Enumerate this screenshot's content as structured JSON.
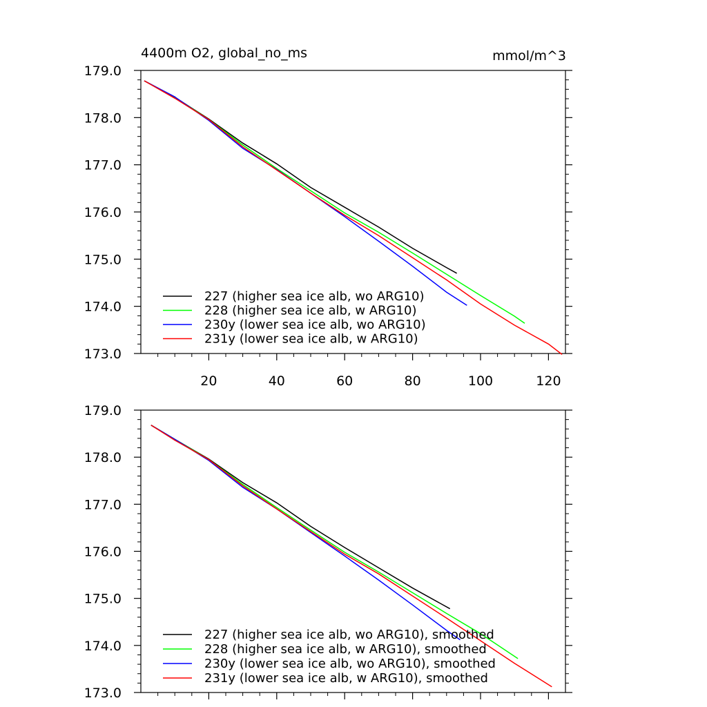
{
  "figure": {
    "title_left": "4400m O2, global_no_ms",
    "title_right": "mmol/m^3"
  },
  "chart_data": [
    {
      "type": "line",
      "title": "4400m O2, global_no_ms",
      "units": "mmol/m^3",
      "xlabel": "",
      "ylabel": "",
      "xlim": [
        0,
        125
      ],
      "ylim": [
        173.0,
        179.0
      ],
      "x_ticks": [
        20,
        40,
        60,
        80,
        100,
        120
      ],
      "x_tick_labels": [
        "20",
        "40",
        "60",
        "80",
        "100",
        "120"
      ],
      "y_ticks": [
        173.0,
        174.0,
        175.0,
        176.0,
        177.0,
        178.0,
        179.0
      ],
      "y_tick_labels": [
        "173.0",
        "174.0",
        "175.0",
        "176.0",
        "177.0",
        "178.0",
        "179.0"
      ],
      "grid": false,
      "legend_position": "bottom-left",
      "series": [
        {
          "name": "227 (higher sea ice alb, wo ARG10)",
          "color": "#000000",
          "x": [
            1,
            10,
            20,
            30,
            40,
            50,
            60,
            70,
            80,
            90,
            93
          ],
          "y": [
            178.78,
            178.43,
            177.97,
            177.46,
            177.02,
            176.52,
            176.1,
            175.68,
            175.23,
            174.82,
            174.7
          ]
        },
        {
          "name": "228 (higher sea ice alb, w ARG10)",
          "color": "#00ff00",
          "x": [
            1,
            10,
            20,
            30,
            40,
            50,
            60,
            70,
            80,
            90,
            100,
            110,
            113
          ],
          "y": [
            178.78,
            178.43,
            177.96,
            177.42,
            176.92,
            176.45,
            175.98,
            175.57,
            175.13,
            174.68,
            174.23,
            173.79,
            173.64
          ]
        },
        {
          "name": "230y (lower sea ice alb, wo ARG10)",
          "color": "#0000ff",
          "x": [
            1,
            10,
            20,
            30,
            40,
            50,
            60,
            70,
            80,
            90,
            96
          ],
          "y": [
            178.78,
            178.44,
            177.94,
            177.35,
            176.9,
            176.4,
            175.9,
            175.38,
            174.85,
            174.3,
            174.02
          ]
        },
        {
          "name": "231y (lower sea ice alb, w ARG10)",
          "color": "#ff0000",
          "x": [
            1,
            10,
            20,
            30,
            40,
            50,
            60,
            70,
            80,
            90,
            100,
            110,
            120,
            124
          ],
          "y": [
            178.78,
            178.41,
            177.96,
            177.38,
            176.89,
            176.4,
            175.93,
            175.5,
            175.03,
            174.56,
            174.05,
            173.6,
            173.2,
            172.98
          ]
        }
      ]
    },
    {
      "type": "line",
      "title": "",
      "xlabel": "",
      "ylabel": "",
      "xlim": [
        0,
        125
      ],
      "ylim": [
        173.0,
        179.0
      ],
      "x_ticks": [
        20,
        40,
        60,
        80,
        100,
        120
      ],
      "x_tick_labels": [],
      "y_ticks": [
        173.0,
        174.0,
        175.0,
        176.0,
        177.0,
        178.0,
        179.0
      ],
      "y_tick_labels": [
        "173.0",
        "174.0",
        "175.0",
        "176.0",
        "177.0",
        "178.0",
        "179.0"
      ],
      "grid": false,
      "legend_position": "bottom-left",
      "series": [
        {
          "name": "227 (higher sea ice alb, wo ARG10), smoothed",
          "color": "#000000",
          "x": [
            3,
            10,
            20,
            30,
            40,
            50,
            60,
            70,
            80,
            91
          ],
          "y": [
            178.68,
            178.38,
            177.96,
            177.46,
            177.03,
            176.53,
            176.08,
            175.65,
            175.22,
            174.78
          ]
        },
        {
          "name": "228 (higher sea ice alb, w ARG10), smoothed",
          "color": "#00ff00",
          "x": [
            3,
            10,
            20,
            30,
            40,
            50,
            60,
            70,
            80,
            90,
            100,
            111
          ],
          "y": [
            178.68,
            178.38,
            177.95,
            177.42,
            176.93,
            176.45,
            175.98,
            175.56,
            175.12,
            174.68,
            174.25,
            173.72
          ]
        },
        {
          "name": "230y (lower sea ice alb, wo ARG10), smoothed",
          "color": "#0000ff",
          "x": [
            3,
            10,
            20,
            30,
            40,
            50,
            60,
            70,
            80,
            90,
            94
          ],
          "y": [
            178.68,
            178.38,
            177.93,
            177.36,
            176.9,
            176.4,
            175.9,
            175.39,
            174.86,
            174.32,
            174.12
          ]
        },
        {
          "name": "231y (lower sea ice alb, w ARG10), smoothed",
          "color": "#ff0000",
          "x": [
            3,
            10,
            20,
            30,
            40,
            50,
            60,
            70,
            80,
            90,
            100,
            110,
            121
          ],
          "y": [
            178.68,
            178.36,
            177.95,
            177.39,
            176.9,
            176.42,
            175.94,
            175.52,
            175.05,
            174.58,
            174.1,
            173.62,
            173.12
          ]
        }
      ]
    }
  ]
}
